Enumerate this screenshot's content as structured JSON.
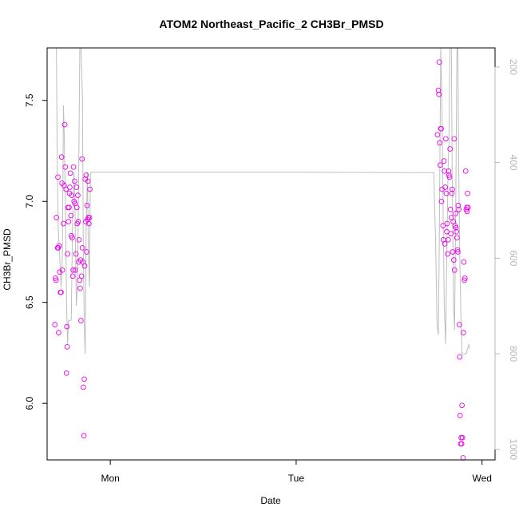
{
  "chart_data": {
    "type": "scatter",
    "title": "ATOM2 Northeast_Pacific_2 CH3Br_PMSD",
    "xlabel": "Date",
    "ylabel": "CH3Br_PMSD",
    "x_ticks": [
      {
        "x": 1.0,
        "label": "Mon"
      },
      {
        "x": 2.0,
        "label": "Tue"
      },
      {
        "x": 3.0,
        "label": "Wed"
      }
    ],
    "xlim": [
      0.66,
      3.07
    ],
    "ylim": [
      5.72,
      7.76
    ],
    "y_ticks": [
      6.0,
      6.5,
      7.0,
      7.5
    ],
    "y_tick_labels": [
      "6.0",
      "6.5",
      "7.0",
      "7.5"
    ],
    "y2_ticks": [
      200,
      400,
      600,
      800,
      1000
    ],
    "y2_tick_labels": [
      "200",
      "400",
      "600",
      "800",
      "1000"
    ],
    "y2lim": [
      1022,
      160
    ],
    "grid": false,
    "points_color": "#ee00ee",
    "line_color": "#bebebe",
    "right_axis_color": "#b8b8b8",
    "series": [
      {
        "points": [
          [
            0.702,
            6.39
          ],
          [
            0.705,
            6.62
          ],
          [
            0.708,
            6.61
          ],
          [
            0.71,
            6.92
          ],
          [
            0.716,
            6.77
          ],
          [
            0.718,
            7.12
          ],
          [
            0.72,
            6.77
          ],
          [
            0.722,
            6.35
          ],
          [
            0.725,
            6.78
          ],
          [
            0.728,
            6.65
          ],
          [
            0.732,
            6.55
          ],
          [
            0.735,
            6.55
          ],
          [
            0.738,
            7.22
          ],
          [
            0.74,
            7.09
          ],
          [
            0.742,
            6.66
          ],
          [
            0.748,
            6.89
          ],
          [
            0.752,
            7.08
          ],
          [
            0.755,
            7.38
          ],
          [
            0.758,
            7.17
          ],
          [
            0.762,
            7.06
          ],
          [
            0.764,
            6.15
          ],
          [
            0.766,
            6.38
          ],
          [
            0.768,
            6.28
          ],
          [
            0.77,
            6.74
          ],
          [
            0.772,
            6.97
          ],
          [
            0.775,
            6.9
          ],
          [
            0.778,
            6.97
          ],
          [
            0.78,
            7.04
          ],
          [
            0.782,
            7.07
          ],
          [
            0.785,
            7.14
          ],
          [
            0.788,
            6.93
          ],
          [
            0.79,
            6.83
          ],
          [
            0.792,
            7.03
          ],
          [
            0.795,
            6.82
          ],
          [
            0.798,
            6.63
          ],
          [
            0.8,
            6.66
          ],
          [
            0.802,
            7.17
          ],
          [
            0.805,
            7.0
          ],
          [
            0.808,
            7.1
          ],
          [
            0.81,
            6.99
          ],
          [
            0.812,
            6.66
          ],
          [
            0.815,
            6.74
          ],
          [
            0.818,
            7.07
          ],
          [
            0.82,
            6.97
          ],
          [
            0.822,
            6.89
          ],
          [
            0.825,
            7.03
          ],
          [
            0.828,
            6.9
          ],
          [
            0.83,
            6.7
          ],
          [
            0.832,
            6.81
          ],
          [
            0.835,
            6.61
          ],
          [
            0.838,
            6.57
          ],
          [
            0.84,
            6.71
          ],
          [
            0.842,
            6.41
          ],
          [
            0.845,
            6.63
          ],
          [
            0.848,
            7.21
          ],
          [
            0.85,
            6.77
          ],
          [
            0.852,
            6.7
          ],
          [
            0.855,
            6.08
          ],
          [
            0.858,
            5.84
          ],
          [
            0.86,
            6.12
          ],
          [
            0.862,
            6.68
          ],
          [
            0.865,
            7.11
          ],
          [
            0.868,
            6.9
          ],
          [
            0.87,
            7.13
          ],
          [
            0.872,
            6.75
          ],
          [
            0.875,
            6.98
          ],
          [
            0.878,
            6.91
          ],
          [
            0.88,
            7.1
          ],
          [
            0.882,
            6.92
          ],
          [
            0.885,
            6.89
          ],
          [
            0.888,
            6.92
          ],
          [
            0.89,
            7.06
          ],
          [
            2.76,
            7.33
          ],
          [
            2.765,
            7.55
          ],
          [
            2.768,
            7.53
          ],
          [
            2.77,
            7.69
          ],
          [
            2.772,
            7.29
          ],
          [
            2.775,
            7.18
          ],
          [
            2.778,
            7.36
          ],
          [
            2.78,
            7.36
          ],
          [
            2.782,
            7.0
          ],
          [
            2.785,
            7.06
          ],
          [
            2.79,
            6.88
          ],
          [
            2.792,
            6.81
          ],
          [
            2.795,
            7.2
          ],
          [
            2.798,
            7.15
          ],
          [
            2.8,
            6.79
          ],
          [
            2.802,
            7.07
          ],
          [
            2.805,
            7.31
          ],
          [
            2.808,
            7.04
          ],
          [
            2.81,
            6.85
          ],
          [
            2.812,
            6.89
          ],
          [
            2.815,
            6.74
          ],
          [
            2.818,
            6.81
          ],
          [
            2.82,
            7.15
          ],
          [
            2.822,
            7.13
          ],
          [
            2.825,
            7.12
          ],
          [
            2.828,
            7.26
          ],
          [
            2.83,
            6.96
          ],
          [
            2.832,
            6.84
          ],
          [
            2.835,
            6.92
          ],
          [
            2.838,
            7.04
          ],
          [
            2.84,
            7.06
          ],
          [
            2.842,
            6.75
          ],
          [
            2.845,
            6.9
          ],
          [
            2.848,
            6.71
          ],
          [
            2.85,
            7.31
          ],
          [
            2.852,
            6.66
          ],
          [
            2.855,
            6.88
          ],
          [
            2.858,
            6.94
          ],
          [
            2.86,
            6.87
          ],
          [
            2.862,
            6.85
          ],
          [
            2.865,
            6.82
          ],
          [
            2.868,
            6.76
          ],
          [
            2.87,
            6.75
          ],
          [
            2.872,
            6.98
          ],
          [
            2.875,
            6.96
          ],
          [
            2.878,
            6.39
          ],
          [
            2.88,
            6.23
          ],
          [
            2.882,
            5.94
          ],
          [
            2.885,
            5.8
          ],
          [
            2.888,
            5.83
          ],
          [
            2.89,
            5.8
          ],
          [
            2.892,
            5.99
          ],
          [
            2.895,
            5.83
          ],
          [
            2.898,
            5.73
          ],
          [
            2.9,
            6.35
          ],
          [
            2.902,
            6.7
          ],
          [
            2.905,
            6.61
          ],
          [
            2.908,
            6.62
          ],
          [
            2.912,
            7.15
          ],
          [
            2.915,
            6.96
          ],
          [
            2.918,
            6.97
          ],
          [
            2.92,
            6.95
          ],
          [
            2.922,
            7.04
          ],
          [
            2.925,
            6.97
          ]
        ]
      },
      {
        "axis": "right",
        "points": [
          [
            0.7,
            160
          ],
          [
            0.71,
            160
          ],
          [
            0.715,
            420
          ],
          [
            0.72,
            540
          ],
          [
            0.728,
            600
          ],
          [
            0.735,
            660
          ],
          [
            0.742,
            600
          ],
          [
            0.748,
            280
          ],
          [
            0.752,
            340
          ],
          [
            0.758,
            480
          ],
          [
            0.765,
            700
          ],
          [
            0.77,
            780
          ],
          [
            0.775,
            730
          ],
          [
            0.782,
            730
          ],
          [
            0.79,
            730
          ],
          [
            0.797,
            520
          ],
          [
            0.805,
            420
          ],
          [
            0.81,
            500
          ],
          [
            0.817,
            700
          ],
          [
            0.823,
            660
          ],
          [
            0.83,
            420
          ],
          [
            0.836,
            160
          ],
          [
            0.842,
            160
          ],
          [
            0.85,
            260
          ],
          [
            0.855,
            590
          ],
          [
            0.86,
            740
          ],
          [
            0.865,
            800
          ],
          [
            0.87,
            540
          ],
          [
            0.877,
            420
          ],
          [
            0.882,
            590
          ],
          [
            0.888,
            660
          ],
          [
            0.893,
            430
          ],
          [
            0.896,
            420
          ],
          [
            0.9,
            420
          ],
          [
            1.0,
            420
          ],
          [
            2.0,
            420
          ],
          [
            2.74,
            421
          ],
          [
            2.75,
            560
          ],
          [
            2.758,
            740
          ],
          [
            2.765,
            760
          ],
          [
            2.77,
            560
          ],
          [
            2.778,
            160
          ],
          [
            2.785,
            300
          ],
          [
            2.79,
            480
          ],
          [
            2.797,
            700
          ],
          [
            2.804,
            780
          ],
          [
            2.81,
            600
          ],
          [
            2.818,
            400
          ],
          [
            2.822,
            360
          ],
          [
            2.827,
            160
          ],
          [
            2.835,
            160
          ],
          [
            2.84,
            460
          ],
          [
            2.847,
            700
          ],
          [
            2.852,
            750
          ],
          [
            2.858,
            520
          ],
          [
            2.865,
            160
          ],
          [
            2.87,
            160
          ],
          [
            2.875,
            420
          ],
          [
            2.88,
            590
          ],
          [
            2.886,
            720
          ],
          [
            2.892,
            800
          ],
          [
            2.9,
            800
          ],
          [
            2.915,
            800
          ],
          [
            2.925,
            785
          ],
          [
            2.93,
            780
          ],
          [
            2.932,
            790
          ]
        ]
      }
    ]
  }
}
